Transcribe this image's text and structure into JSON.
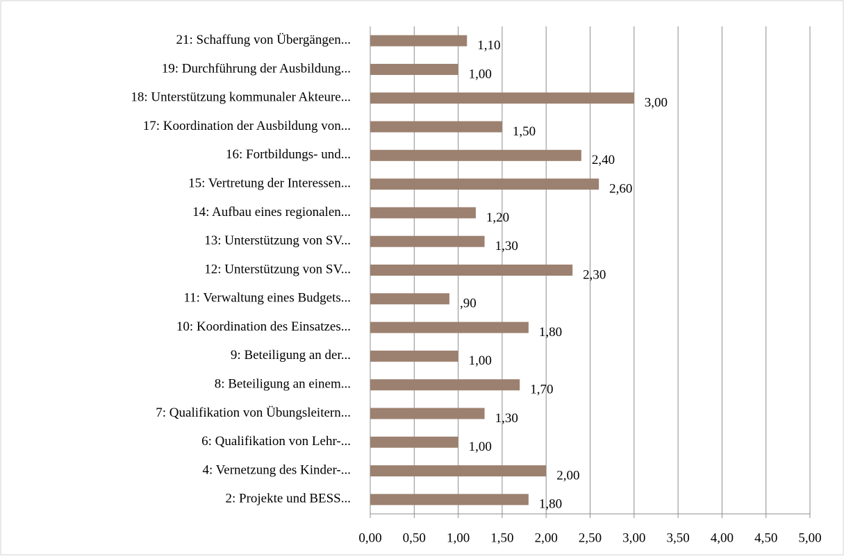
{
  "chart_data": {
    "type": "barh",
    "categories": [
      "21: Schaffung von Übergängen...",
      "19:  Durchführung der Ausbildung...",
      "18: Unterstützung kommunaler Akteure...",
      "17: Koordination der Ausbildung von...",
      "16: Fortbildungs- und...",
      "15:  Vertretung der Interessen...",
      "14: Aufbau eines regionalen...",
      "13: Unterstützung von SV...",
      "12: Unterstützung von SV...",
      "11: Verwaltung eines Budgets...",
      "10: Koordination des Einsatzes...",
      "9: Beteiligung an der...",
      "8: Beteiligung an einem...",
      "7: Qualifikation von Übungsleitern...",
      "6: Qualifikation von Lehr-...",
      "4:  Vernetzung des Kinder-...",
      "2: Projekte und BESS..."
    ],
    "values": [
      1.1,
      1.0,
      3.0,
      1.5,
      2.4,
      2.6,
      1.2,
      1.3,
      2.3,
      0.9,
      1.8,
      1.0,
      1.7,
      1.3,
      1.0,
      2.0,
      1.8
    ],
    "value_labels": [
      "1,10",
      "1,00",
      "3,00",
      "1,50",
      "2,40",
      "2,60",
      "1,20",
      "1,30",
      "2,30",
      ",90",
      "1,80",
      "1,00",
      "1,70",
      "1,30",
      "1,00",
      "2,00",
      "1,80"
    ],
    "color": "#9c8170",
    "xlim": [
      0,
      5
    ],
    "xticks": [
      {
        "value": 0,
        "label": "0,00"
      },
      {
        "value": 0.5,
        "label": "0,50"
      },
      {
        "value": 1,
        "label": "1,00"
      },
      {
        "value": 1.5,
        "label": "1,50"
      },
      {
        "value": 2,
        "label": "2,00"
      },
      {
        "value": 2.5,
        "label": "2,50"
      },
      {
        "value": 3,
        "label": "3,00"
      },
      {
        "value": 3.5,
        "label": "3,50"
      },
      {
        "value": 4,
        "label": "4,00"
      },
      {
        "value": 4.5,
        "label": "4,50"
      },
      {
        "value": 5,
        "label": "5,00"
      }
    ],
    "grid": true
  }
}
